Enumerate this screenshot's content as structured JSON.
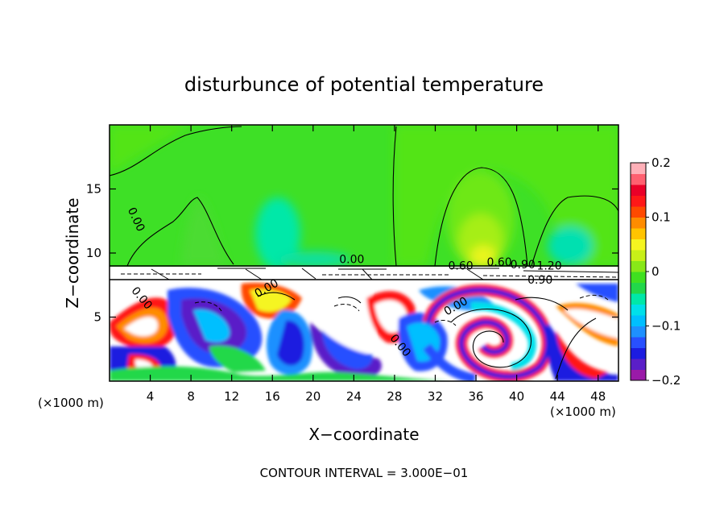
{
  "chart_data": {
    "type": "heatmap",
    "title": "disturbunce of potential temperature",
    "xlabel": "X−coordinate",
    "ylabel": "Z−coordinate",
    "x_unit_left": "(×1000 m)",
    "x_unit_right": "(×1000 m)",
    "footer": "CONTOUR INTERVAL = 3.000E−01",
    "xlim": [
      0,
      50
    ],
    "ylim": [
      0,
      20
    ],
    "x_ticks": [
      4,
      8,
      12,
      16,
      20,
      24,
      28,
      32,
      36,
      40,
      44,
      48
    ],
    "y_ticks": [
      5,
      10,
      15
    ],
    "grid": false,
    "colorbar": {
      "range": [
        -0.2,
        0.2
      ],
      "ticks": [
        {
          "value": 0.2,
          "label": "0.2"
        },
        {
          "value": 0.1,
          "label": "0.1"
        },
        {
          "value": 0,
          "label": "0"
        },
        {
          "value": -0.1,
          "label": "−0.1"
        },
        {
          "value": -0.2,
          "label": "−0.2"
        }
      ],
      "colors": [
        "#9a1aa8",
        "#5a1fc8",
        "#1c1ce0",
        "#2850ff",
        "#1e90ff",
        "#00bfff",
        "#00e0ea",
        "#00e8a8",
        "#22d84a",
        "#40e020",
        "#88e818",
        "#c8f018",
        "#f5f520",
        "#ffc400",
        "#ff8c00",
        "#ff4a00",
        "#ff1818",
        "#ea0028",
        "#ff6070",
        "#ffb0b8"
      ]
    },
    "contour_labels": [
      {
        "x": 2.3,
        "y": 12.5,
        "text": "0.00",
        "rot": 65
      },
      {
        "x": 23.8,
        "y": 9.2,
        "text": "0.00",
        "rot": 0
      },
      {
        "x": 34.5,
        "y": 8.7,
        "text": "0.60",
        "rot": 0
      },
      {
        "x": 38.3,
        "y": 9.0,
        "text": "0.60",
        "rot": 0
      },
      {
        "x": 40.6,
        "y": 8.8,
        "text": "0.90",
        "rot": 0
      },
      {
        "x": 43.2,
        "y": 8.7,
        "text": "1.20",
        "rot": 0
      },
      {
        "x": 42.3,
        "y": 7.6,
        "text": "0.90",
        "rot": 0
      },
      {
        "x": 15.6,
        "y": 7.0,
        "text": "0.00",
        "rot": -30
      },
      {
        "x": 2.9,
        "y": 6.3,
        "text": "0.00",
        "rot": 50
      },
      {
        "x": 34.2,
        "y": 5.6,
        "text": "0.00",
        "rot": -30
      },
      {
        "x": 28.3,
        "y": 2.6,
        "text": "0.00",
        "rot": 50
      }
    ]
  }
}
